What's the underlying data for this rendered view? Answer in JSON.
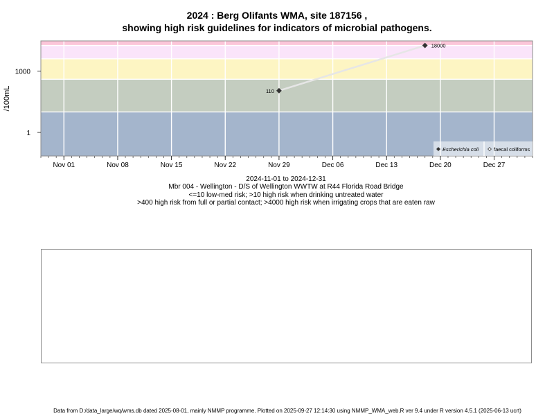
{
  "title_line1": "2024 : Berg Olifants WMA, site 187156 ,",
  "title_line2": "showing high risk guidelines for indicators of microbial pathogens.",
  "chart_data": {
    "type": "scatter",
    "title": "2024 : Berg Olifants WMA, site 187156 , showing high risk guidelines for indicators of microbial pathogens.",
    "ylabel": "/100mL",
    "yscale": "log",
    "x_ticks": [
      "Nov 01",
      "Nov 08",
      "Nov 15",
      "Nov 22",
      "Nov 29",
      "Dec 06",
      "Dec 13",
      "Dec 20",
      "Dec 27"
    ],
    "x_tick_dates": [
      "2024-11-01",
      "2024-11-08",
      "2024-11-15",
      "2024-11-22",
      "2024-11-29",
      "2024-12-06",
      "2024-12-13",
      "2024-12-20",
      "2024-12-27"
    ],
    "xlim": [
      "2024-10-29",
      "2025-01-01"
    ],
    "y_ticks": [
      1,
      1000
    ],
    "y_tick_labels": [
      "1",
      "1000"
    ],
    "ylim": [
      0.07,
      30000
    ],
    "grid": true,
    "risk_bands": [
      {
        "from": 0.07,
        "to": 10,
        "color": "#a4b5cc"
      },
      {
        "from": 10,
        "to": 400,
        "color": "#c4cdc0"
      },
      {
        "from": 400,
        "to": 4000,
        "color": "#fdf5c3"
      },
      {
        "from": 4000,
        "to": 18000,
        "color": "#fae4fa"
      },
      {
        "from": 18000,
        "to": 30000,
        "color": "#fbc6d9"
      }
    ],
    "series": [
      {
        "name": "Escherichia coli",
        "marker": "filled-diamond",
        "color": "#333333",
        "points": [
          {
            "x": "2024-11-29",
            "y": 110,
            "label": "110"
          },
          {
            "x": "2024-12-18",
            "y": 18000,
            "label": "18000"
          }
        ]
      },
      {
        "name": "faecal coliforms",
        "marker": "open-diamond",
        "color": "#333333",
        "points": []
      }
    ],
    "legend_position": "bottom-right"
  },
  "subtitles": [
    "2024-11-01 to 2024-12-31",
    "Mbr 004 - Wellington - D/S of Wellington WWTW at R44 Florida Road Bridge",
    "<=10 low-med risk; >10 high risk when drinking untreated water",
    ">400 high risk from full or partial contact; >4000 high risk when irrigating crops that are eaten raw"
  ],
  "footer": "Data from D:/data_large/wq/wms.db dated 2025-08-01, mainly NMMP programme. Plotted on 2025-09-27 12:14:30 using NMMP_WMA_web.R ver 9.4 under R version 4.5.1 (2025-06-13 ucrt)"
}
